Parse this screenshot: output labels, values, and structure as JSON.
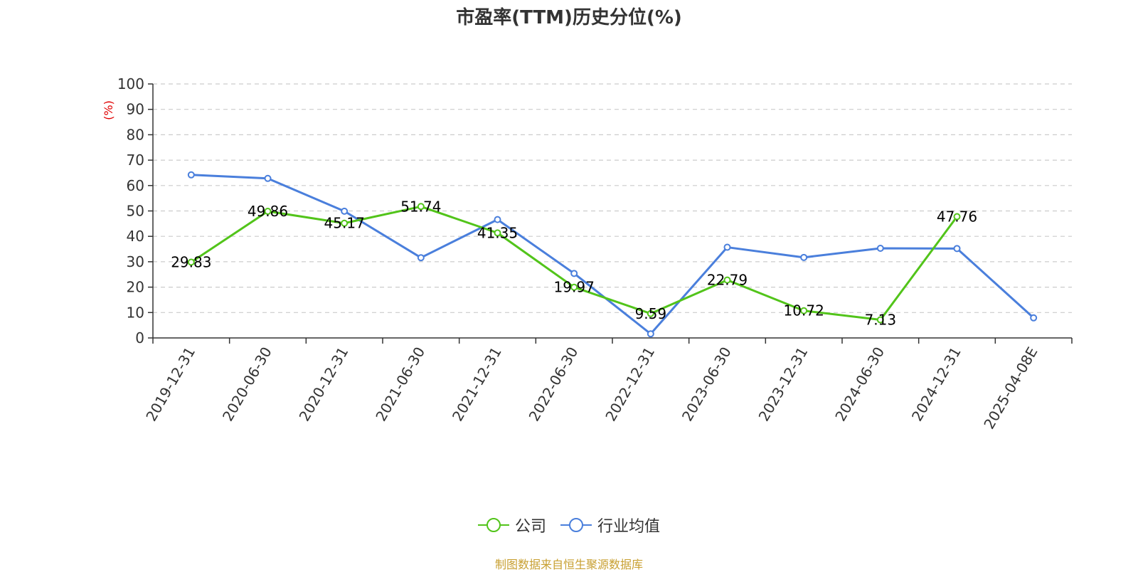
{
  "title": "市盈率(TTM)历史分位(%)",
  "source_note": "制图数据来自恒生聚源数据库",
  "chart_data": {
    "type": "line",
    "title": "市盈率(TTM)历史分位(%)",
    "ylabel": "(%)",
    "ylim": [
      0,
      100
    ],
    "yticks": [
      0,
      10,
      20,
      30,
      40,
      50,
      60,
      70,
      80,
      90,
      100
    ],
    "grid": true,
    "legend_position": "bottom-center",
    "categories": [
      "2019-12-31",
      "2020-06-30",
      "2020-12-31",
      "2021-06-30",
      "2021-12-31",
      "2022-06-30",
      "2022-12-31",
      "2023-06-30",
      "2023-12-31",
      "2024-06-30",
      "2024-12-31",
      "2025-04-08E"
    ],
    "series": [
      {
        "name": "公司",
        "color": "#52c41a",
        "values": [
          29.83,
          49.86,
          45.17,
          51.74,
          41.35,
          19.97,
          9.59,
          22.79,
          10.72,
          7.13,
          47.76,
          null
        ],
        "labels": [
          "29.83",
          "49.86",
          "45.17",
          "51.74",
          "41.35",
          "19.97",
          "9.59",
          "22.79",
          "10.72",
          "7.13",
          "47.76",
          ""
        ]
      },
      {
        "name": "行业均值",
        "color": "#4a7fdc",
        "values": [
          64.2,
          62.8,
          49.9,
          31.6,
          46.6,
          25.4,
          1.6,
          35.7,
          31.7,
          35.3,
          35.2,
          7.9
        ]
      }
    ]
  }
}
